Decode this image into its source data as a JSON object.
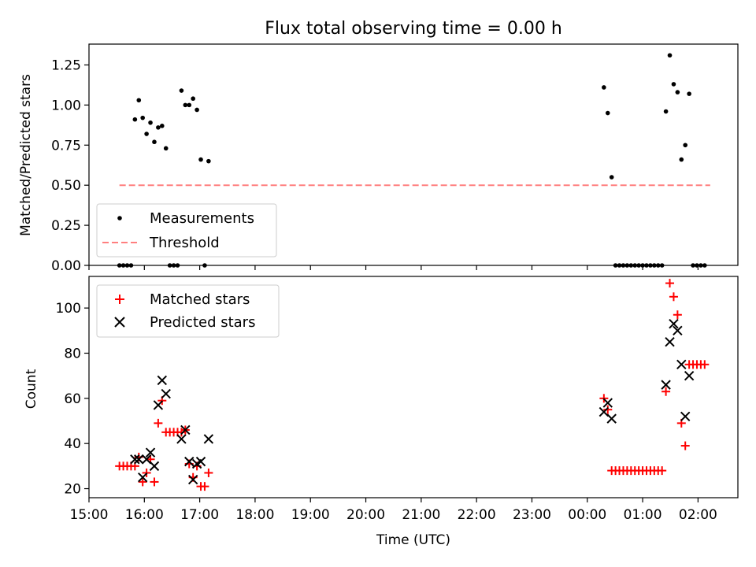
{
  "title": "Flux total observing time = 0.00 h",
  "xlabel": "Time (UTC)",
  "xticks": [
    {
      "label": "15:00",
      "v": 15
    },
    {
      "label": "16:00",
      "v": 16
    },
    {
      "label": "17:00",
      "v": 17
    },
    {
      "label": "18:00",
      "v": 18
    },
    {
      "label": "19:00",
      "v": 19
    },
    {
      "label": "20:00",
      "v": 20
    },
    {
      "label": "21:00",
      "v": 21
    },
    {
      "label": "22:00",
      "v": 22
    },
    {
      "label": "23:00",
      "v": 23
    },
    {
      "label": "00:00",
      "v": 24
    },
    {
      "label": "01:00",
      "v": 25
    },
    {
      "label": "02:00",
      "v": 26
    }
  ],
  "xlim": [
    15.0,
    26.72
  ],
  "colors": {
    "measurements": "#000000",
    "threshold": "#ff7f7f",
    "matched": "#ff0000",
    "predicted": "#000000"
  },
  "chart_data": [
    {
      "type": "scatter",
      "name": "ratio",
      "ylabel": "Matched/Predicted stars",
      "ylim": [
        0,
        1.38
      ],
      "yticks": [
        {
          "label": "0.00",
          "v": 0
        },
        {
          "label": "0.25",
          "v": 0.25
        },
        {
          "label": "0.50",
          "v": 0.5
        },
        {
          "label": "0.75",
          "v": 0.75
        },
        {
          "label": "1.00",
          "v": 1.0
        },
        {
          "label": "1.25",
          "v": 1.25
        }
      ],
      "legend": {
        "position": "lower-left",
        "entries": [
          "Measurements",
          "Threshold"
        ]
      },
      "threshold": {
        "name": "Threshold",
        "value": 0.5,
        "x_range": [
          15.55,
          26.22
        ]
      },
      "series": [
        {
          "name": "Measurements",
          "marker": "dot",
          "points": [
            [
              15.55,
              0
            ],
            [
              15.62,
              0
            ],
            [
              15.69,
              0
            ],
            [
              15.76,
              0
            ],
            [
              15.83,
              0.91
            ],
            [
              15.9,
              1.03
            ],
            [
              15.97,
              0.92
            ],
            [
              16.04,
              0.82
            ],
            [
              16.11,
              0.89
            ],
            [
              16.18,
              0.77
            ],
            [
              16.25,
              0.86
            ],
            [
              16.32,
              0.87
            ],
            [
              16.39,
              0.73
            ],
            [
              16.46,
              0
            ],
            [
              16.53,
              0
            ],
            [
              16.6,
              0
            ],
            [
              16.67,
              1.09
            ],
            [
              16.74,
              1.0
            ],
            [
              16.81,
              1.0
            ],
            [
              16.88,
              1.04
            ],
            [
              16.95,
              0.97
            ],
            [
              17.02,
              0.66
            ],
            [
              17.09,
              0
            ],
            [
              17.16,
              0.65
            ],
            [
              24.3,
              1.11
            ],
            [
              24.37,
              0.95
            ],
            [
              24.44,
              0.55
            ],
            [
              24.51,
              0
            ],
            [
              24.58,
              0
            ],
            [
              24.65,
              0
            ],
            [
              24.72,
              0
            ],
            [
              24.79,
              0
            ],
            [
              24.86,
              0
            ],
            [
              24.93,
              0
            ],
            [
              25.0,
              0
            ],
            [
              25.07,
              0
            ],
            [
              25.14,
              0
            ],
            [
              25.21,
              0
            ],
            [
              25.28,
              0
            ],
            [
              25.35,
              0
            ],
            [
              25.42,
              0.96
            ],
            [
              25.49,
              1.31
            ],
            [
              25.56,
              1.13
            ],
            [
              25.63,
              1.08
            ],
            [
              25.7,
              0.66
            ],
            [
              25.77,
              0.75
            ],
            [
              25.84,
              1.07
            ],
            [
              25.91,
              0
            ],
            [
              25.98,
              0
            ],
            [
              26.05,
              0
            ],
            [
              26.12,
              0
            ]
          ]
        }
      ]
    },
    {
      "type": "scatter",
      "name": "counts",
      "ylabel": "Count",
      "ylim": [
        16,
        114
      ],
      "yticks": [
        {
          "label": "20",
          "v": 20
        },
        {
          "label": "40",
          "v": 40
        },
        {
          "label": "60",
          "v": 60
        },
        {
          "label": "80",
          "v": 80
        },
        {
          "label": "100",
          "v": 100
        }
      ],
      "legend": {
        "position": "upper-left",
        "entries": [
          "Matched stars",
          "Predicted stars"
        ]
      },
      "series": [
        {
          "name": "Matched stars",
          "marker": "plus",
          "points": [
            [
              15.55,
              30
            ],
            [
              15.62,
              30
            ],
            [
              15.69,
              30
            ],
            [
              15.76,
              30
            ],
            [
              15.83,
              30
            ],
            [
              15.9,
              34
            ],
            [
              15.97,
              23
            ],
            [
              16.04,
              27
            ],
            [
              16.11,
              33
            ],
            [
              16.18,
              23
            ],
            [
              16.25,
              49
            ],
            [
              16.32,
              59
            ],
            [
              16.39,
              45
            ],
            [
              16.46,
              45
            ],
            [
              16.53,
              45
            ],
            [
              16.6,
              45
            ],
            [
              16.67,
              45
            ],
            [
              16.74,
              46
            ],
            [
              16.81,
              31
            ],
            [
              16.88,
              25
            ],
            [
              16.95,
              30
            ],
            [
              17.02,
              21
            ],
            [
              17.09,
              21
            ],
            [
              17.16,
              27
            ],
            [
              24.3,
              60
            ],
            [
              24.37,
              55
            ],
            [
              24.44,
              28
            ],
            [
              24.51,
              28
            ],
            [
              24.58,
              28
            ],
            [
              24.65,
              28
            ],
            [
              24.72,
              28
            ],
            [
              24.79,
              28
            ],
            [
              24.86,
              28
            ],
            [
              24.93,
              28
            ],
            [
              25.0,
              28
            ],
            [
              25.07,
              28
            ],
            [
              25.14,
              28
            ],
            [
              25.21,
              28
            ],
            [
              25.28,
              28
            ],
            [
              25.35,
              28
            ],
            [
              25.42,
              63
            ],
            [
              25.49,
              111
            ],
            [
              25.56,
              105
            ],
            [
              25.63,
              97
            ],
            [
              25.7,
              49
            ],
            [
              25.77,
              39
            ],
            [
              25.84,
              75
            ],
            [
              25.91,
              75
            ],
            [
              25.98,
              75
            ],
            [
              26.05,
              75
            ],
            [
              26.12,
              75
            ]
          ]
        },
        {
          "name": "Predicted stars",
          "marker": "x",
          "points": [
            [
              15.83,
              33
            ],
            [
              15.9,
              33
            ],
            [
              15.97,
              25
            ],
            [
              16.04,
              33
            ],
            [
              16.11,
              36
            ],
            [
              16.18,
              30
            ],
            [
              16.25,
              57
            ],
            [
              16.32,
              68
            ],
            [
              16.39,
              62
            ],
            [
              16.67,
              42
            ],
            [
              16.74,
              46
            ],
            [
              16.81,
              32
            ],
            [
              16.88,
              24
            ],
            [
              16.95,
              31
            ],
            [
              17.02,
              32
            ],
            [
              17.16,
              42
            ],
            [
              24.3,
              54
            ],
            [
              24.37,
              58
            ],
            [
              24.44,
              51
            ],
            [
              25.42,
              66
            ],
            [
              25.49,
              85
            ],
            [
              25.56,
              93
            ],
            [
              25.63,
              90
            ],
            [
              25.7,
              75
            ],
            [
              25.77,
              52
            ],
            [
              25.84,
              70
            ]
          ]
        }
      ]
    }
  ]
}
